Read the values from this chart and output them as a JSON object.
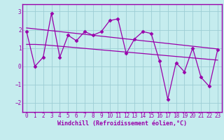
{
  "x": [
    0,
    1,
    2,
    3,
    4,
    5,
    6,
    7,
    8,
    9,
    10,
    11,
    12,
    13,
    14,
    15,
    16,
    17,
    18,
    19,
    20,
    21,
    22,
    23
  ],
  "y_main": [
    1.9,
    0.0,
    0.5,
    2.9,
    0.5,
    1.7,
    1.4,
    1.9,
    1.7,
    1.9,
    2.5,
    2.6,
    0.7,
    1.5,
    1.9,
    1.8,
    0.3,
    -1.8,
    0.2,
    -0.3,
    1.0,
    -0.6,
    -1.1,
    0.9
  ],
  "y_trend1": [
    1.2,
    1.2,
    1.18,
    1.14,
    1.1,
    1.06,
    1.02,
    0.98,
    0.94,
    0.9,
    0.86,
    0.82,
    0.78,
    0.74,
    0.7,
    0.66,
    0.62,
    0.58,
    0.54,
    0.5,
    0.46,
    0.42,
    0.38,
    0.34
  ],
  "y_trend2": [
    2.1,
    2.05,
    2.0,
    1.95,
    1.9,
    1.85,
    1.8,
    1.75,
    1.7,
    1.65,
    1.6,
    1.55,
    1.5,
    1.45,
    1.4,
    1.35,
    1.3,
    1.25,
    1.2,
    1.15,
    1.1,
    1.05,
    1.0,
    0.95
  ],
  "line_color": "#9900aa",
  "bg_color": "#c5ecee",
  "grid_color": "#9dcdd4",
  "border_color": "#9900aa",
  "xlabel": "Windchill (Refroidissement éolien,°C)",
  "ylim": [
    -2.5,
    3.4
  ],
  "xlim": [
    -0.5,
    23.5
  ],
  "yticks": [
    -2,
    -1,
    0,
    1,
    2,
    3
  ],
  "xticks": [
    0,
    1,
    2,
    3,
    4,
    5,
    6,
    7,
    8,
    9,
    10,
    11,
    12,
    13,
    14,
    15,
    16,
    17,
    18,
    19,
    20,
    21,
    22,
    23
  ],
  "tick_fontsize": 5.5,
  "label_fontsize": 6.0
}
